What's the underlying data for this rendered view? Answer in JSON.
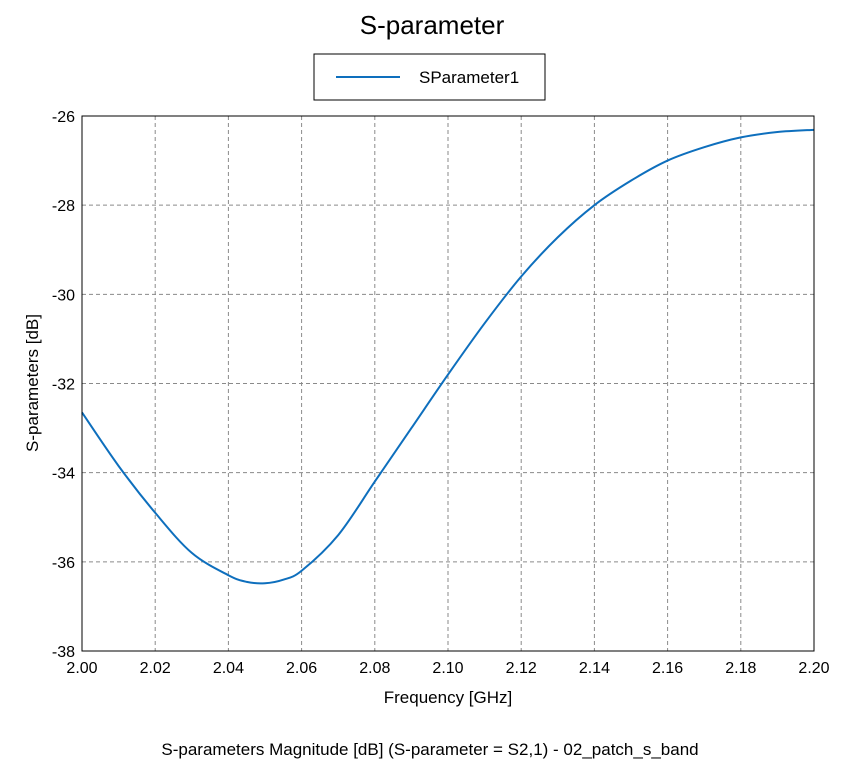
{
  "chart_data": {
    "type": "line",
    "title": "S-parameter",
    "xlabel": "Frequency [GHz]",
    "ylabel": "S-parameters [dB]",
    "caption": "S-parameters Magnitude [dB] (S-parameter = S2,1) - 02_patch_s_band",
    "xlim": [
      2.0,
      2.2
    ],
    "ylim": [
      -38,
      -26
    ],
    "xticks": [
      "2.00",
      "2.02",
      "2.04",
      "2.06",
      "2.08",
      "2.10",
      "2.12",
      "2.14",
      "2.16",
      "2.18",
      "2.20"
    ],
    "yticks": [
      "-26",
      "-28",
      "-30",
      "-32",
      "-34",
      "-36",
      "-38"
    ],
    "grid": true,
    "legend_position": "top-center",
    "series": [
      {
        "name": "SParameter1",
        "color": "#0e6fbd",
        "x": [
          2.0,
          2.01,
          2.02,
          2.03,
          2.04,
          2.045,
          2.05,
          2.055,
          2.06,
          2.07,
          2.08,
          2.09,
          2.1,
          2.11,
          2.12,
          2.13,
          2.14,
          2.15,
          2.16,
          2.17,
          2.18,
          2.19,
          2.2
        ],
        "y": [
          -32.65,
          -33.85,
          -34.9,
          -35.8,
          -36.3,
          -36.45,
          -36.48,
          -36.4,
          -36.2,
          -35.4,
          -34.2,
          -33.0,
          -31.8,
          -30.65,
          -29.6,
          -28.72,
          -28.0,
          -27.45,
          -27.0,
          -26.7,
          -26.48,
          -26.36,
          -26.31
        ]
      }
    ]
  }
}
